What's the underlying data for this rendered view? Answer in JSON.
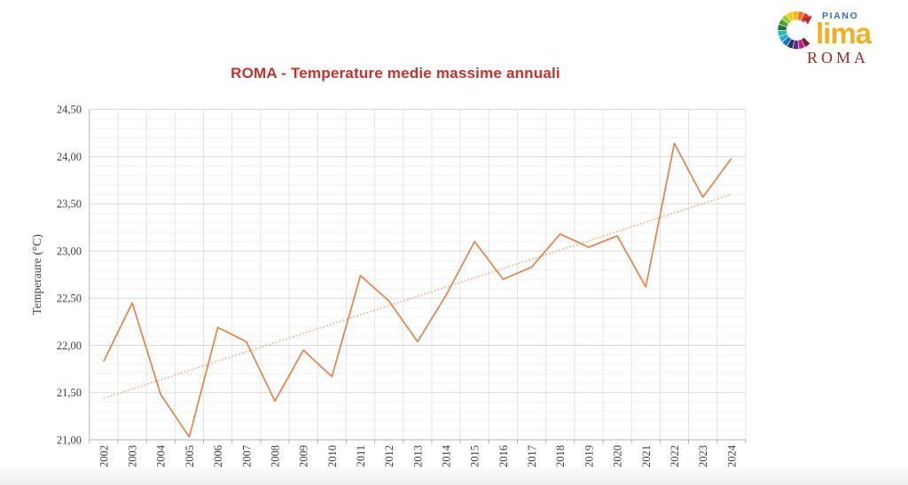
{
  "page": {
    "background": "#ffffff"
  },
  "logo": {
    "piano": "PIANO",
    "lima": "lima",
    "roma": "ROMA",
    "piano_color": "#3A6FB7",
    "lima_color": "#F0AF25",
    "roma_color": "#9E2B25",
    "wheel_tip_color": "#C22033",
    "wheel_colors": [
      "#7B1A3C",
      "#C0227B",
      "#5B2D86",
      "#1F3A67",
      "#1F6FB5",
      "#2FA8DF",
      "#2BB6AE",
      "#1E7A3C",
      "#50A033",
      "#9FC93C",
      "#F3D00F",
      "#FDB515",
      "#F3752B",
      "#E5302C"
    ]
  },
  "chart_data": {
    "type": "line",
    "title": "ROMA - Temperature medie massime annuali",
    "title_color": "#C4332A",
    "ylabel": "Temperaure (°C)",
    "xlabel": "",
    "x": [
      2002,
      2003,
      2004,
      2005,
      2006,
      2007,
      2008,
      2009,
      2010,
      2011,
      2012,
      2013,
      2014,
      2015,
      2016,
      2017,
      2018,
      2019,
      2020,
      2021,
      2022,
      2023,
      2024
    ],
    "series": [
      {
        "name": "Temperature medie massime annuali",
        "color": "#E5824A",
        "style": "solid",
        "values": [
          21.83,
          22.45,
          21.48,
          21.03,
          22.19,
          22.04,
          21.41,
          21.95,
          21.67,
          22.74,
          22.47,
          22.04,
          22.53,
          23.1,
          22.7,
          22.83,
          23.18,
          23.04,
          23.16,
          22.62,
          24.14,
          23.57,
          23.98
        ]
      }
    ],
    "trendline": {
      "style": "dotted",
      "color": "#E89A6B",
      "start_value": 21.44,
      "end_value": 23.6
    },
    "ylim": [
      21.0,
      24.5
    ],
    "ytick_step": 0.5,
    "ytick_labels": [
      "21,00",
      "21,50",
      "22,00",
      "22,50",
      "23,00",
      "23,50",
      "24,00",
      "24,50"
    ],
    "minor_step": 0.1,
    "grid": true,
    "legend": "none",
    "axis_text_color": "#3f3f3f",
    "grid_major_color": "#d9d9d9",
    "grid_minor_color": "#f2f2f2",
    "grid_vertical_color": "#e4e4e4",
    "axis_line_color": "#b3b3b3"
  }
}
